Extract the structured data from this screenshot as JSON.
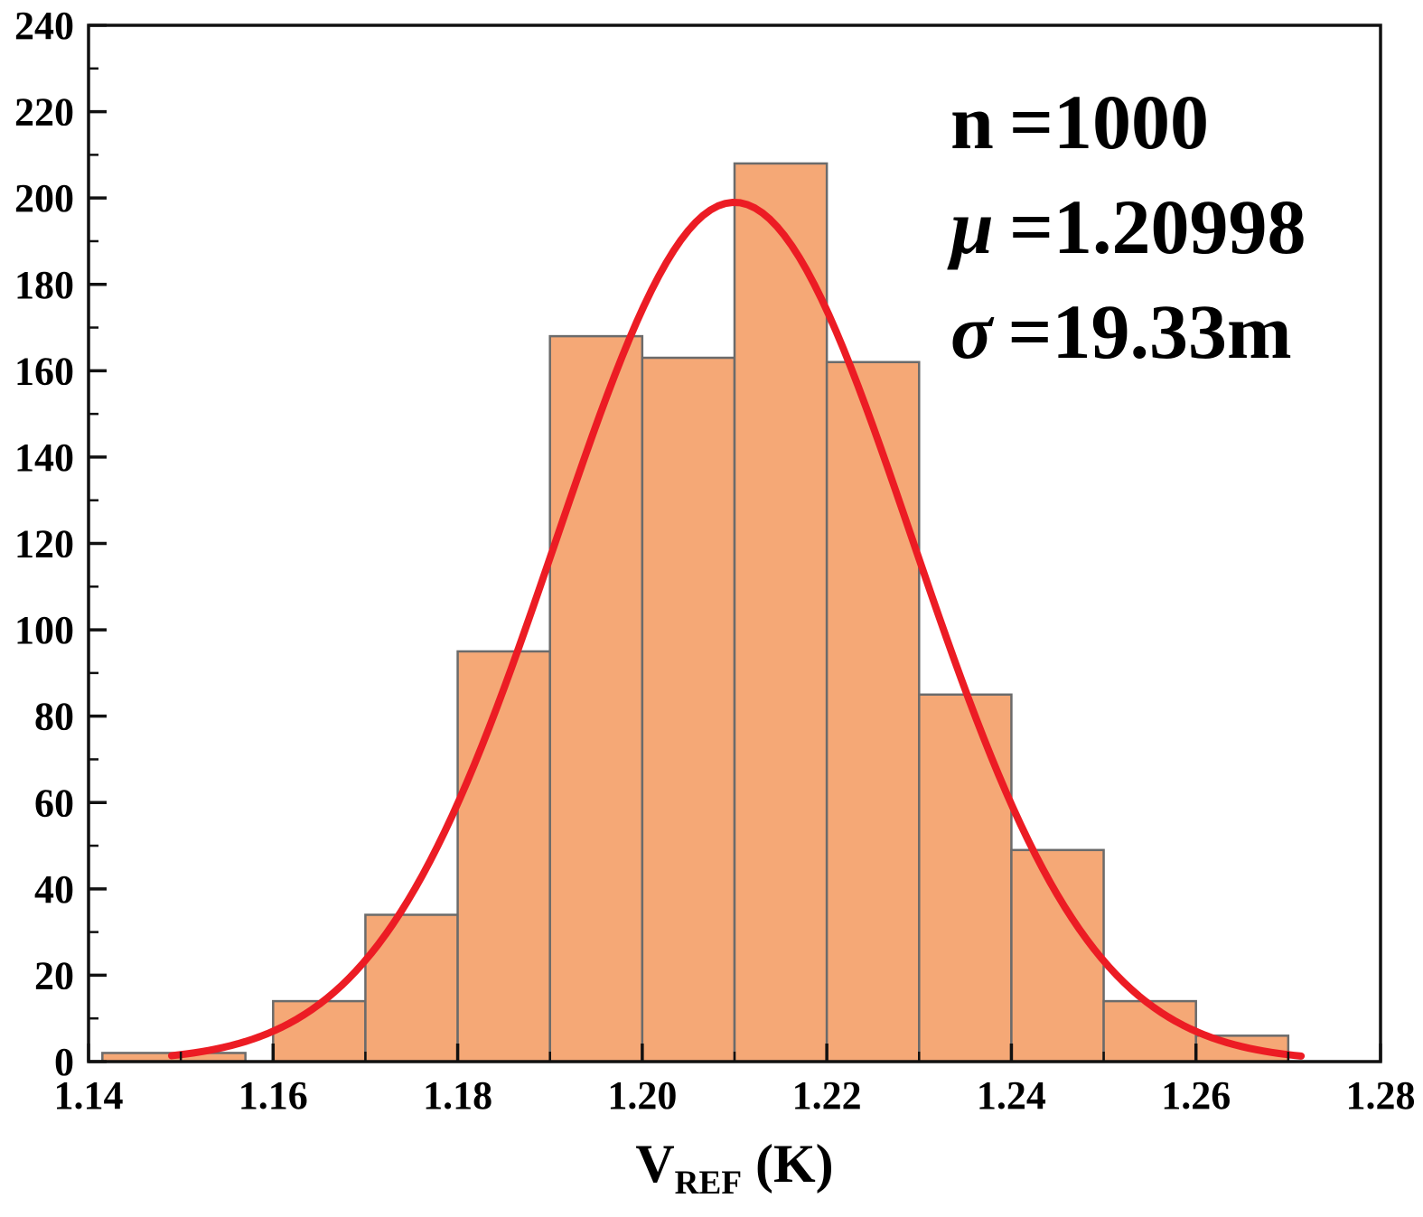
{
  "chart_data": {
    "type": "bar",
    "subtype": "histogram-with-gaussian-fit",
    "title": "",
    "xlabel": {
      "base": "V",
      "sub": "REF",
      "unit": "(K)"
    },
    "ylabel": "",
    "xlim": [
      1.14,
      1.28
    ],
    "ylim": [
      0,
      240
    ],
    "x_major_tick_step": 0.02,
    "x_minor_tick_step": 0.01,
    "y_major_tick_step": 20,
    "y_minor_tick_step": 10,
    "x_tick_labels": [
      "1.14",
      "1.16",
      "1.18",
      "1.20",
      "1.22",
      "1.24",
      "1.26",
      "1.28"
    ],
    "y_tick_labels": [
      "0",
      "20",
      "40",
      "60",
      "80",
      "100",
      "120",
      "140",
      "160",
      "180",
      "200",
      "220",
      "240"
    ],
    "grid": false,
    "bars": [
      {
        "x0": 1.1415,
        "x1": 1.157,
        "count": 2
      },
      {
        "x0": 1.16,
        "x1": 1.17,
        "count": 14
      },
      {
        "x0": 1.17,
        "x1": 1.18,
        "count": 34
      },
      {
        "x0": 1.18,
        "x1": 1.19,
        "count": 95
      },
      {
        "x0": 1.19,
        "x1": 1.2,
        "count": 168
      },
      {
        "x0": 1.2,
        "x1": 1.21,
        "count": 163
      },
      {
        "x0": 1.21,
        "x1": 1.22,
        "count": 208
      },
      {
        "x0": 1.22,
        "x1": 1.23,
        "count": 162
      },
      {
        "x0": 1.23,
        "x1": 1.24,
        "count": 85
      },
      {
        "x0": 1.24,
        "x1": 1.25,
        "count": 49
      },
      {
        "x0": 1.25,
        "x1": 1.26,
        "count": 14
      },
      {
        "x0": 1.26,
        "x1": 1.27,
        "count": 6
      }
    ],
    "fit_curve": {
      "type": "gaussian",
      "mu": 1.20998,
      "sigma": 0.01933,
      "peak": 199,
      "x_start": 1.149,
      "x_end": 1.2715
    },
    "stats": [
      {
        "symbol": "n",
        "italic": false,
        "value": "=1000"
      },
      {
        "symbol": "μ",
        "italic": true,
        "value": "=1.20998"
      },
      {
        "symbol": "σ",
        "italic": true,
        "value": "=19.33m"
      }
    ],
    "colors": {
      "bar_fill": "#F5A876",
      "bar_edge": "#6B6B6B",
      "curve": "#EC1C24",
      "frame": "#111111",
      "text": "#000000",
      "background": "#FFFFFF"
    }
  }
}
